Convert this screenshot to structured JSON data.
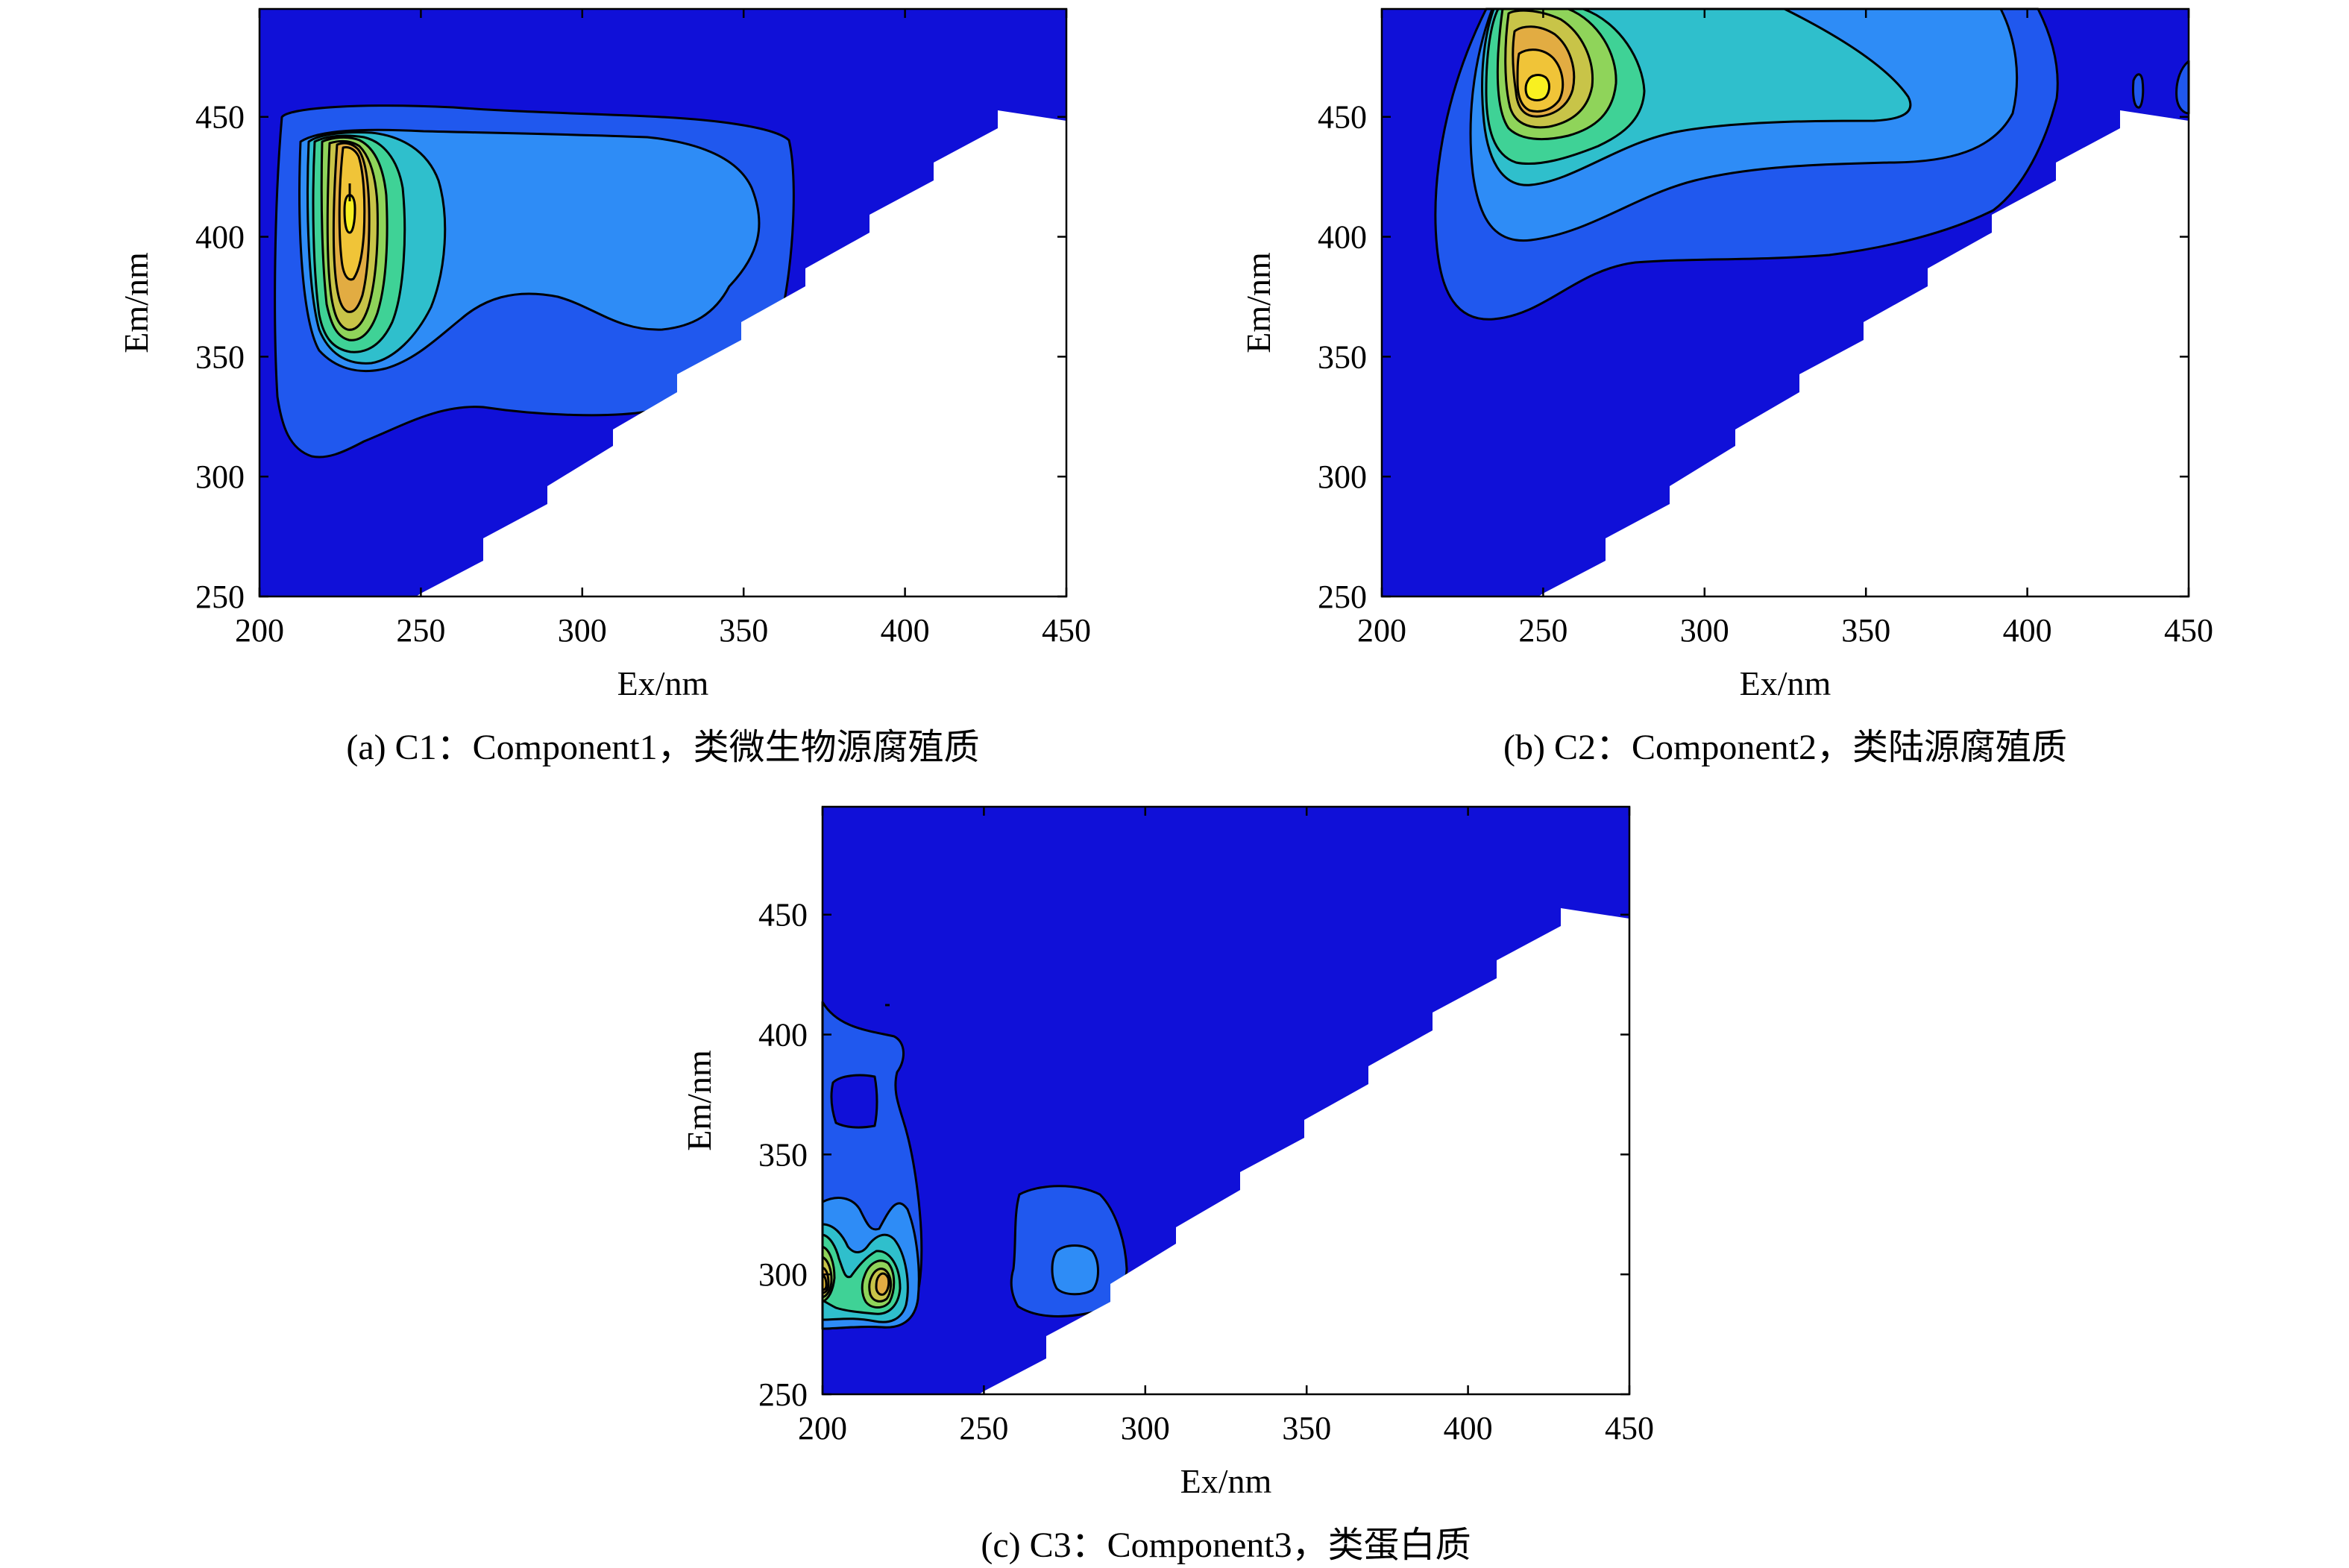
{
  "chart_data": [
    {
      "type": "contour",
      "caption": "(a) C1：Component1，类微生物源腐殖质",
      "xlabel": "Ex/nm",
      "ylabel": "Em/nm",
      "xlim": [
        200,
        450
      ],
      "ylim": [
        250,
        495
      ],
      "xticks": [
        "200",
        "250",
        "300",
        "350",
        "400",
        "450"
      ],
      "yticks": [
        "250",
        "300",
        "350",
        "400",
        "450"
      ],
      "peak": {
        "ex": 230,
        "em": 410
      },
      "colors": [
        "#1010d8",
        "#2058ee",
        "#2e8cf6",
        "#2fbfcc",
        "#3fd296",
        "#8fd45a",
        "#c8c448",
        "#e2ac42",
        "#f0c438",
        "#f8f020"
      ]
    },
    {
      "type": "contour",
      "caption": "(b) C2：Component2，类陆源腐殖质",
      "xlabel": "Ex/nm",
      "ylabel": "Em/nm",
      "xlim": [
        200,
        450
      ],
      "ylim": [
        250,
        495
      ],
      "xticks": [
        "200",
        "250",
        "300",
        "350",
        "400",
        "450"
      ],
      "yticks": [
        "250",
        "300",
        "350",
        "400",
        "450"
      ],
      "peak": {
        "ex": 250,
        "em": 462
      },
      "colors": [
        "#1010d8",
        "#2058ee",
        "#2e8cf6",
        "#2fbfcc",
        "#3fd296",
        "#8fd45a",
        "#c8c448",
        "#e2ac42",
        "#f0c438",
        "#f8f020"
      ]
    },
    {
      "type": "contour",
      "caption": "(c) C3：Component3，类蛋白质",
      "xlabel": "Ex/nm",
      "ylabel": "Em/nm",
      "xlim": [
        200,
        450
      ],
      "ylim": [
        250,
        495
      ],
      "xticks": [
        "200",
        "250",
        "300",
        "350",
        "400",
        "450"
      ],
      "yticks": [
        "250",
        "300",
        "350",
        "400",
        "450"
      ],
      "peak": {
        "ex": 220,
        "em": 302
      },
      "colors": [
        "#1010d8",
        "#2058ee",
        "#2e8cf6",
        "#2fbfcc",
        "#3fd296",
        "#8fd45a",
        "#c8c448",
        "#e2ac42",
        "#f0c438",
        "#f8f020"
      ]
    }
  ]
}
